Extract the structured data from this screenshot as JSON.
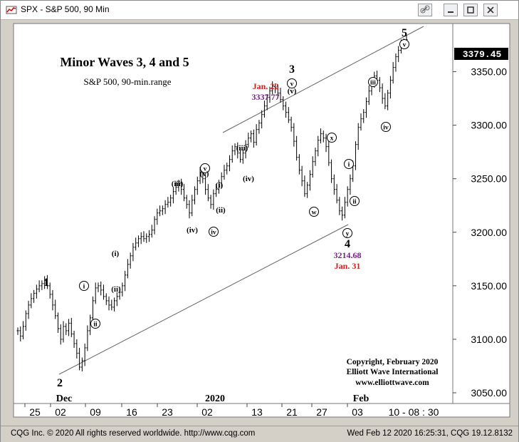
{
  "window": {
    "title": "SPX - S&P 500, 90 Min",
    "buttons": [
      "link-icon",
      "minimize-icon",
      "maximize-icon",
      "close-icon"
    ]
  },
  "statusbar": {
    "left": "CQG Inc. © 2020 All rights reserved worldwide. http://www.cqg.com",
    "right": "Wed Feb 12 2020 16:25:31, CQG 19.12.8132"
  },
  "chart_data": {
    "type": "candlestick",
    "title": "Minor Waves 3, 4 and 5",
    "subtitle": "S&P 500, 90-min.range",
    "last_price": "3379.45",
    "ylim": [
      3040,
      3395
    ],
    "y_ticks": [
      {
        "value": 3350,
        "label": "3350.00"
      },
      {
        "value": 3300,
        "label": "3300.00"
      },
      {
        "value": 3250,
        "label": "3250.00"
      },
      {
        "value": 3200,
        "label": "3200.00"
      },
      {
        "value": 3150,
        "label": "3150.00"
      },
      {
        "value": 3100,
        "label": "3100.00"
      },
      {
        "value": 3050,
        "label": "3050.00"
      }
    ],
    "x_ticks": [
      "25",
      "02",
      "09",
      "16",
      "23",
      "02",
      "13",
      "21",
      "27",
      "03",
      "10 - 08 : 30"
    ],
    "month_labels": [
      "Dec",
      "2020",
      "Feb"
    ],
    "series_close": [
      3108,
      3103,
      3112,
      3124,
      3132,
      3138,
      3143,
      3147,
      3150,
      3152,
      3155,
      3150,
      3142,
      3132,
      3122,
      3110,
      3100,
      3112,
      3108,
      3115,
      3105,
      3096,
      3087,
      3074,
      3080,
      3092,
      3108,
      3120,
      3136,
      3148,
      3150,
      3146,
      3140,
      3136,
      3132,
      3130,
      3136,
      3140,
      3144,
      3150,
      3160,
      3170,
      3178,
      3186,
      3190,
      3194,
      3196,
      3194,
      3196,
      3198,
      3202,
      3212,
      3218,
      3220,
      3222,
      3226,
      3228,
      3232,
      3238,
      3242,
      3246,
      3240,
      3232,
      3226,
      3218,
      3230,
      3240,
      3248,
      3256,
      3250,
      3240,
      3232,
      3226,
      3236,
      3240,
      3246,
      3252,
      3258,
      3262,
      3268,
      3276,
      3280,
      3274,
      3268,
      3274,
      3282,
      3288,
      3292,
      3284,
      3296,
      3302,
      3310,
      3318,
      3326,
      3332,
      3336,
      3334,
      3330,
      3324,
      3318,
      3312,
      3305,
      3298,
      3285,
      3270,
      3258,
      3248,
      3236,
      3244,
      3254,
      3266,
      3276,
      3286,
      3292,
      3288,
      3280,
      3265,
      3250,
      3240,
      3230,
      3220,
      3216,
      3228,
      3240,
      3250,
      3262,
      3282,
      3298,
      3306,
      3312,
      3322,
      3332,
      3340,
      3346,
      3342,
      3335,
      3325,
      3318,
      3330,
      3342,
      3354,
      3364,
      3370,
      3375,
      3378,
      3380
    ],
    "wave_labels": [
      {
        "label": "1",
        "style": "plain"
      },
      {
        "label": "2",
        "style": "plain"
      },
      {
        "label": "3",
        "style": "plain"
      },
      {
        "label": "4",
        "style": "plain"
      },
      {
        "label": "5",
        "style": "plain"
      },
      {
        "label": "i",
        "style": "circle"
      },
      {
        "label": "ii",
        "style": "circle"
      },
      {
        "label": "(i)",
        "style": "paren"
      },
      {
        "label": "(ii)",
        "style": "paren"
      },
      {
        "label": "(iii)",
        "style": "paren"
      },
      {
        "label": "(iv)",
        "style": "paren"
      },
      {
        "label": "v",
        "style": "circle"
      },
      {
        "label": "(v)",
        "style": "paren"
      },
      {
        "label": "(i)",
        "style": "paren"
      },
      {
        "label": "(ii)",
        "style": "paren"
      },
      {
        "label": "iv",
        "style": "circle"
      },
      {
        "label": "(iii)",
        "style": "paren"
      },
      {
        "label": "(iv)",
        "style": "paren"
      },
      {
        "label": "(v)",
        "style": "paren"
      },
      {
        "label": "v",
        "style": "circle"
      },
      {
        "label": "w",
        "style": "circle"
      },
      {
        "label": "x",
        "style": "circle"
      },
      {
        "label": "y",
        "style": "circle"
      },
      {
        "label": "i",
        "style": "circle"
      },
      {
        "label": "ii",
        "style": "circle"
      },
      {
        "label": "iii",
        "style": "circle"
      },
      {
        "label": "iv",
        "style": "circle"
      },
      {
        "label": "v",
        "style": "circle"
      }
    ],
    "annotations": {
      "high_date": "Jan. 22",
      "high_value": "3337.77",
      "low_value": "3214.68",
      "low_date": "Jan. 31"
    },
    "copyright": [
      "Copyright, February 2020",
      "Elliott Wave International",
      "www.elliottwave.com"
    ]
  }
}
